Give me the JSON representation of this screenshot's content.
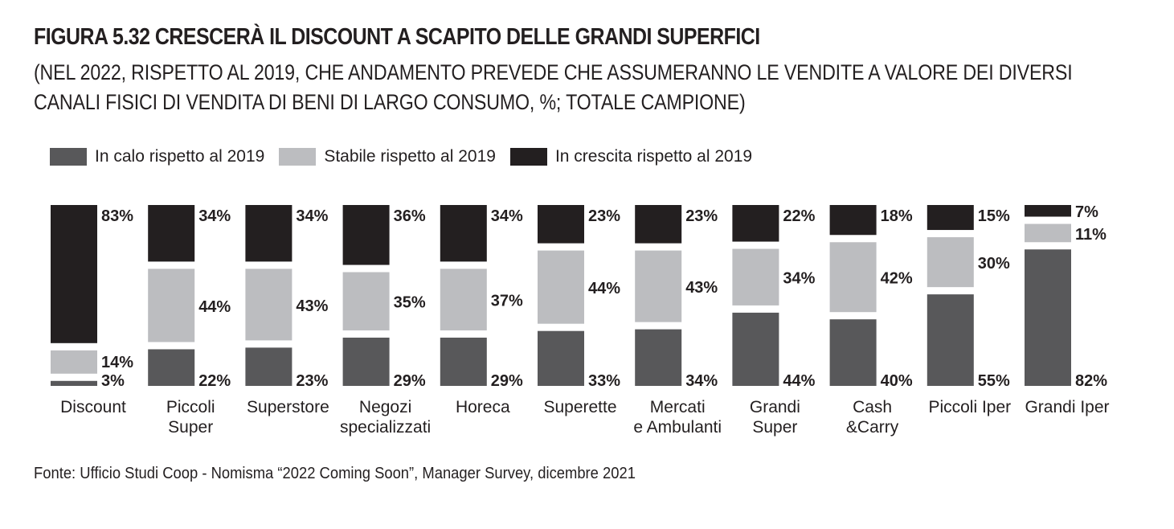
{
  "figure": {
    "title": "FIGURA 5.32 CRESCERÀ IL DISCOUNT A SCAPITO DELLE GRANDI SUPERFICI",
    "subtitle": "(NEL 2022, RISPETTO AL 2019, CHE ANDAMENTO PREVEDE CHE ASSUMERANNO LE VENDITE A VALORE DEI DIVERSI CANALI FISICI DI VENDITA DI BENI DI LARGO CONSUMO, %; TOTALE CAMPIONE)",
    "source": "Fonte: Ufficio Studi Coop - Nomisma “2022 Coming Soon”, Manager Survey, dicembre 2021"
  },
  "colors": {
    "in_calo": "#58585a",
    "stabile": "#bcbdc0",
    "in_crescita": "#231f20"
  },
  "chart_data": {
    "type": "bar",
    "stacked": true,
    "orientation": "vertical",
    "title": "FIGURA 5.32 CRESCERÀ IL DISCOUNT A SCAPITO DELLE GRANDI SUPERFICI",
    "categories": [
      "Discount",
      "Piccoli Super",
      "Superstore",
      "Negozi specializzati",
      "Horeca",
      "Superette",
      "Mercati e Ambulanti",
      "Grandi Super",
      "Cash &Carry",
      "Piccoli Iper",
      "Grandi Iper"
    ],
    "category_lines": [
      [
        "Discount"
      ],
      [
        "Piccoli",
        "Super"
      ],
      [
        "Superstore"
      ],
      [
        "Negozi",
        "specializzati"
      ],
      [
        "Horeca"
      ],
      [
        "Superette"
      ],
      [
        "Mercati",
        "e Ambulanti"
      ],
      [
        "Grandi",
        "Super"
      ],
      [
        "Cash",
        "&Carry"
      ],
      [
        "Piccoli Iper"
      ],
      [
        "Grandi Iper"
      ]
    ],
    "series": [
      {
        "name": "In calo rispetto al 2019",
        "color": "#58585a",
        "values": [
          3,
          22,
          23,
          29,
          29,
          33,
          34,
          44,
          40,
          55,
          82
        ]
      },
      {
        "name": "Stabile rispetto al 2019",
        "color": "#bcbdc0",
        "values": [
          14,
          44,
          43,
          35,
          37,
          44,
          43,
          34,
          42,
          30,
          11
        ]
      },
      {
        "name": "In crescita rispetto al 2019",
        "color": "#231f20",
        "values": [
          83,
          34,
          34,
          36,
          34,
          23,
          23,
          22,
          18,
          15,
          7
        ]
      }
    ],
    "value_suffix": "%",
    "legend_position": "top-left",
    "ylim": [
      0,
      100
    ],
    "grid": false
  }
}
